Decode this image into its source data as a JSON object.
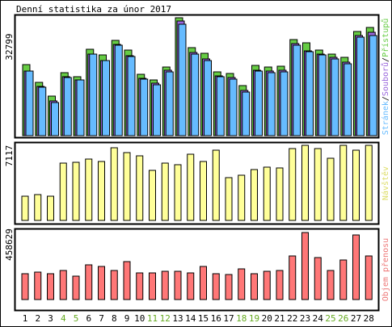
{
  "chart_data": [
    {
      "type": "bar",
      "title": "Denní statistika za únor 2017",
      "ymax_label": "32799",
      "legend": [
        "Stránek",
        "Souborů",
        "Přístupů"
      ],
      "categories": [
        "1",
        "2",
        "3",
        "4",
        "5",
        "6",
        "7",
        "8",
        "9",
        "10",
        "11",
        "12",
        "13",
        "14",
        "15",
        "16",
        "17",
        "18",
        "19",
        "20",
        "21",
        "22",
        "23",
        "24",
        "25",
        "26",
        "27",
        "28"
      ],
      "weekend_days": [
        "4",
        "5",
        "11",
        "12",
        "18",
        "19",
        "25",
        "26"
      ],
      "series": [
        {
          "name": "Přístupů",
          "color": "#66cc44",
          "values": [
            19800,
            14800,
            11000,
            17500,
            16500,
            24000,
            22500,
            26500,
            23800,
            17000,
            15400,
            19200,
            32799,
            24500,
            23000,
            17800,
            17200,
            14000,
            19500,
            19200,
            19400,
            26800,
            25800,
            23800,
            22800,
            21700,
            29000,
            30000
          ]
        },
        {
          "name": "Souborů",
          "color": "#9966dd",
          "values": [
            18000,
            13700,
            9700,
            16500,
            15600,
            22700,
            21000,
            25400,
            22200,
            15900,
            14600,
            18300,
            31800,
            23200,
            21400,
            16700,
            16200,
            12600,
            18200,
            17900,
            18100,
            25600,
            23600,
            22800,
            21800,
            20400,
            27800,
            28800
          ]
        },
        {
          "name": "Stránek",
          "color": "#66bbff",
          "values": [
            18000,
            13400,
            9200,
            16200,
            15500,
            22700,
            20900,
            25200,
            22100,
            15700,
            14200,
            17700,
            31000,
            22800,
            21000,
            16300,
            15800,
            12200,
            17900,
            17500,
            17800,
            25200,
            23300,
            22400,
            21300,
            19900,
            27300,
            27800
          ]
        }
      ]
    },
    {
      "type": "bar",
      "ymax_label": "7117",
      "legend": [
        "Návštěv"
      ],
      "categories": [
        "1",
        "2",
        "3",
        "4",
        "5",
        "6",
        "7",
        "8",
        "9",
        "10",
        "11",
        "12",
        "13",
        "14",
        "15",
        "16",
        "17",
        "18",
        "19",
        "20",
        "21",
        "22",
        "23",
        "24",
        "25",
        "26",
        "27",
        "28"
      ],
      "series": [
        {
          "name": "Návštěv",
          "color": "#ffff99",
          "values": [
            1450,
            1550,
            1450,
            3460,
            3510,
            3710,
            3550,
            4380,
            4070,
            3910,
            3000,
            3460,
            3360,
            3970,
            3560,
            4230,
            2580,
            2740,
            3050,
            3200,
            3150,
            4330,
            4530,
            4330,
            3760,
            4530,
            4230,
            4530
          ]
        }
      ]
    },
    {
      "type": "bar",
      "ymax_label": "458629",
      "legend": [
        "Objem přenosu"
      ],
      "categories": [
        "1",
        "2",
        "3",
        "4",
        "5",
        "6",
        "7",
        "8",
        "9",
        "10",
        "11",
        "12",
        "13",
        "14",
        "15",
        "16",
        "17",
        "18",
        "19",
        "20",
        "21",
        "22",
        "23",
        "24",
        "25",
        "26",
        "27",
        "28"
      ],
      "series": [
        {
          "name": "Objem přenosu",
          "color": "#ff7777",
          "values": [
            178000,
            186000,
            178000,
            200000,
            160000,
            235000,
            227000,
            201000,
            260000,
            185000,
            185000,
            195000,
            195000,
            185000,
            227000,
            178000,
            169000,
            210000,
            178000,
            193000,
            201000,
            300000,
            458629,
            290000,
            201000,
            268000,
            440000,
            300000
          ]
        }
      ]
    }
  ]
}
